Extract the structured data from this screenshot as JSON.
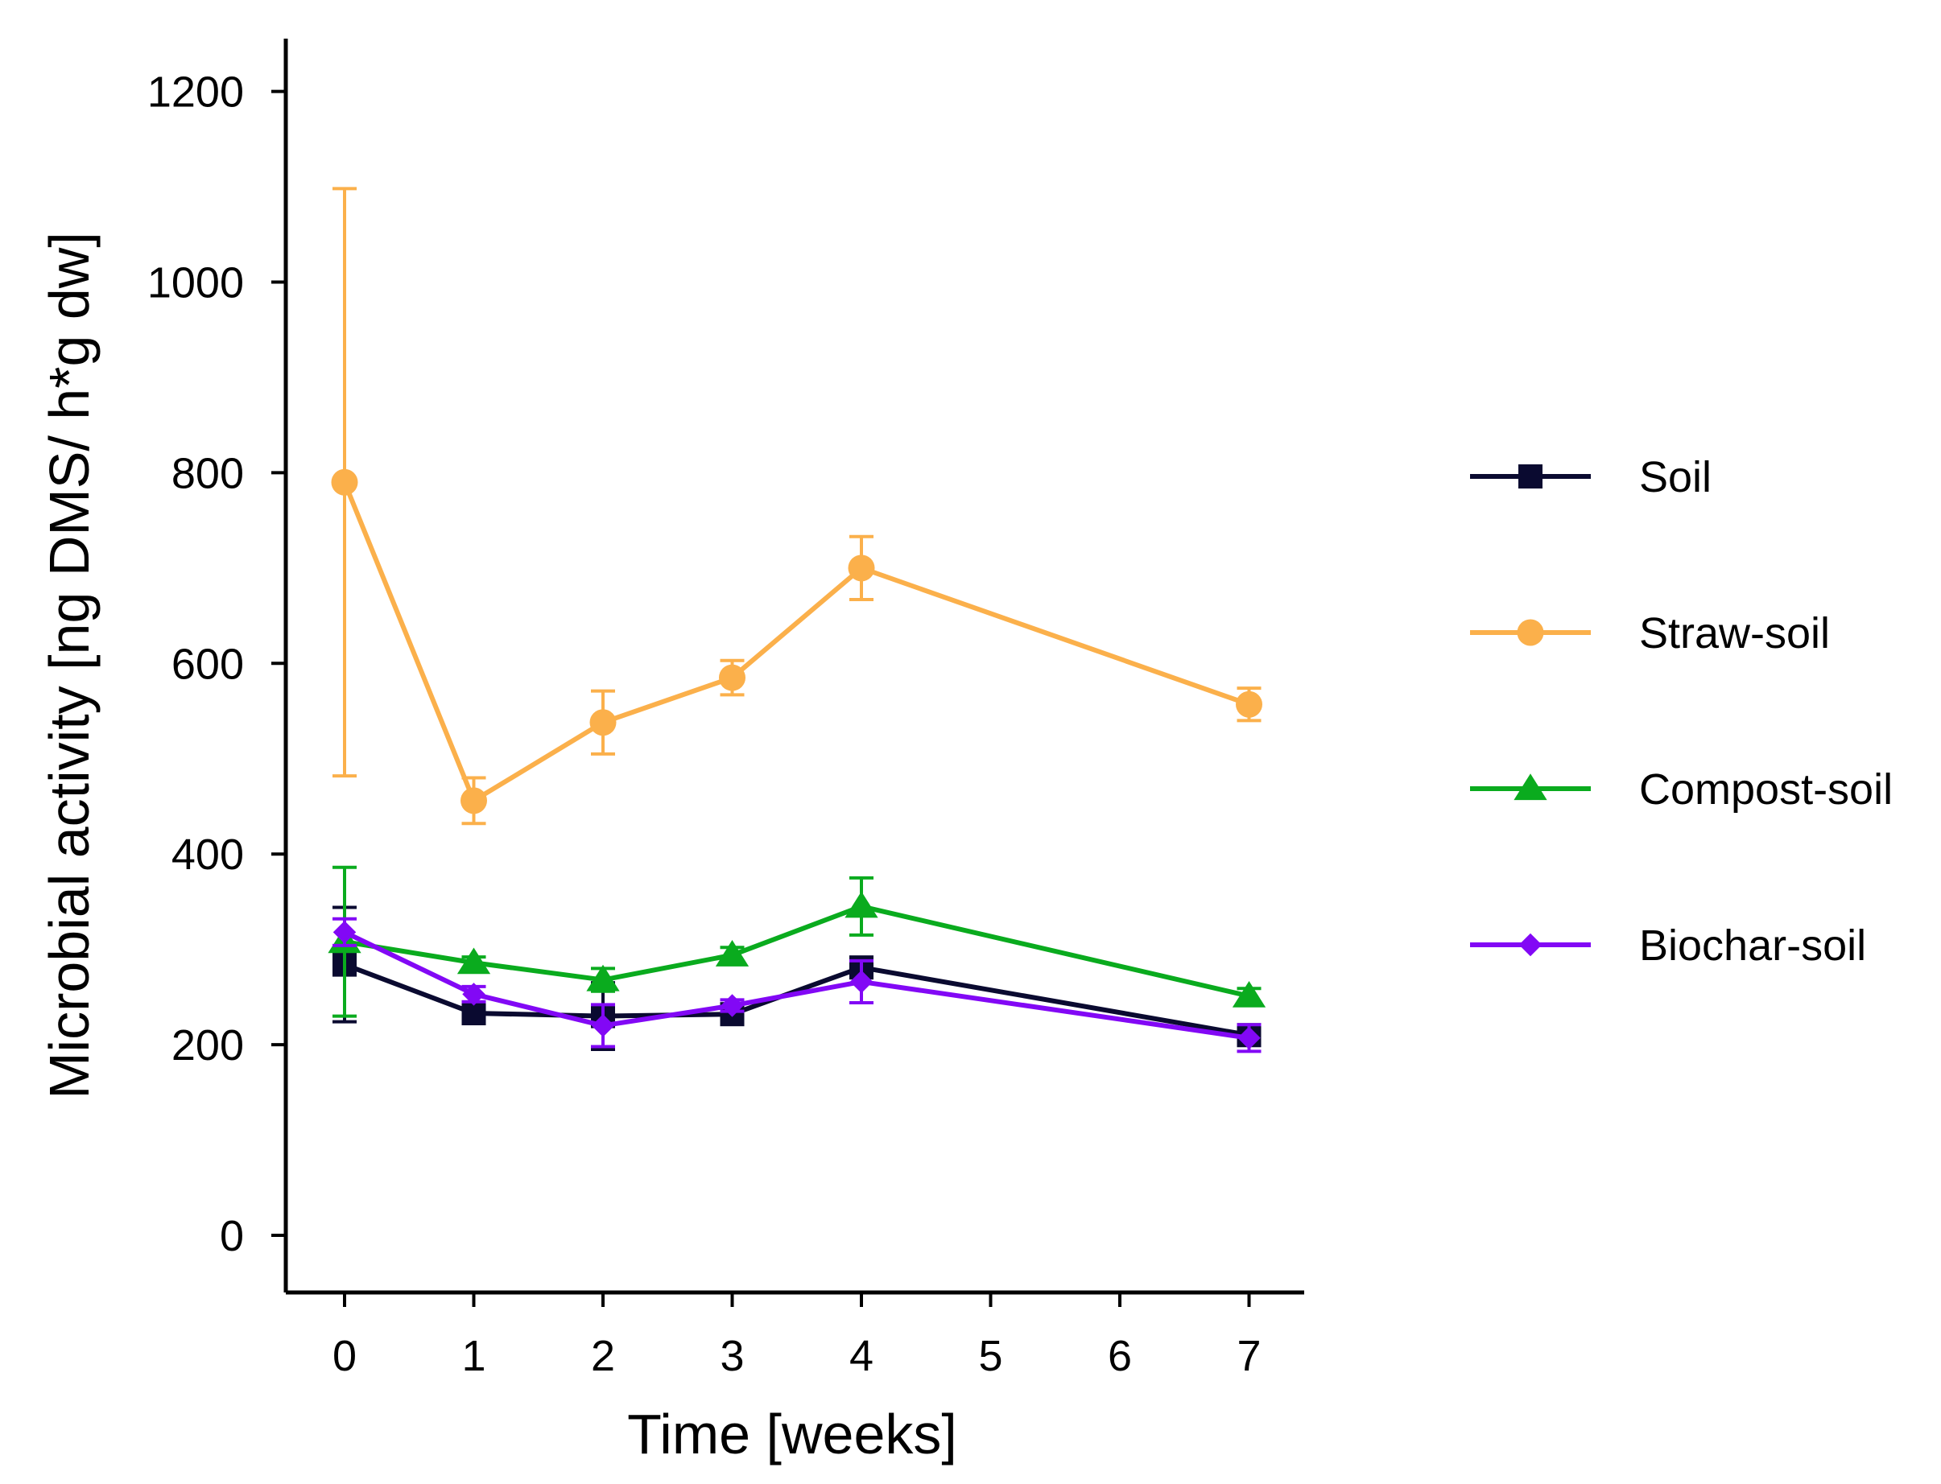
{
  "chart_data": {
    "type": "line",
    "xlabel": "Time [weeks]",
    "ylabel": "Microbial activity [ng DMS/ h*g dw]",
    "xlim": [
      -0.45,
      7.45
    ],
    "ylim": [
      -60,
      1260
    ],
    "xticks": [
      0,
      1,
      2,
      3,
      4,
      5,
      6,
      7
    ],
    "yticks": [
      0,
      200,
      400,
      600,
      800,
      1000,
      1200
    ],
    "legend_position": "right",
    "series": [
      {
        "name": "Soil",
        "color": "#0a0a30",
        "marker": "square",
        "x": [
          0,
          1,
          2,
          3,
          4,
          7
        ],
        "y": [
          284,
          233,
          230,
          232,
          281,
          210
        ],
        "err": [
          60,
          6,
          35,
          6,
          8,
          10
        ]
      },
      {
        "name": "Straw-soil",
        "color": "#fbb04b",
        "marker": "circle",
        "x": [
          0,
          1,
          2,
          3,
          4,
          7
        ],
        "y": [
          790,
          456,
          538,
          585,
          700,
          557
        ],
        "err": [
          308,
          24,
          33,
          18,
          33,
          17
        ]
      },
      {
        "name": "Compost-soil",
        "color": "#0aab1e",
        "marker": "triangle",
        "x": [
          0,
          1,
          2,
          3,
          4,
          7
        ],
        "y": [
          308,
          286,
          268,
          294,
          345,
          251
        ],
        "err": [
          78,
          6,
          12,
          8,
          30,
          8
        ]
      },
      {
        "name": "Biochar-soil",
        "color": "#8208f5",
        "marker": "diamond",
        "x": [
          0,
          1,
          2,
          3,
          4,
          7
        ],
        "y": [
          318,
          253,
          220,
          241,
          266,
          207
        ],
        "err": [
          14,
          8,
          22,
          6,
          22,
          14
        ]
      }
    ]
  }
}
